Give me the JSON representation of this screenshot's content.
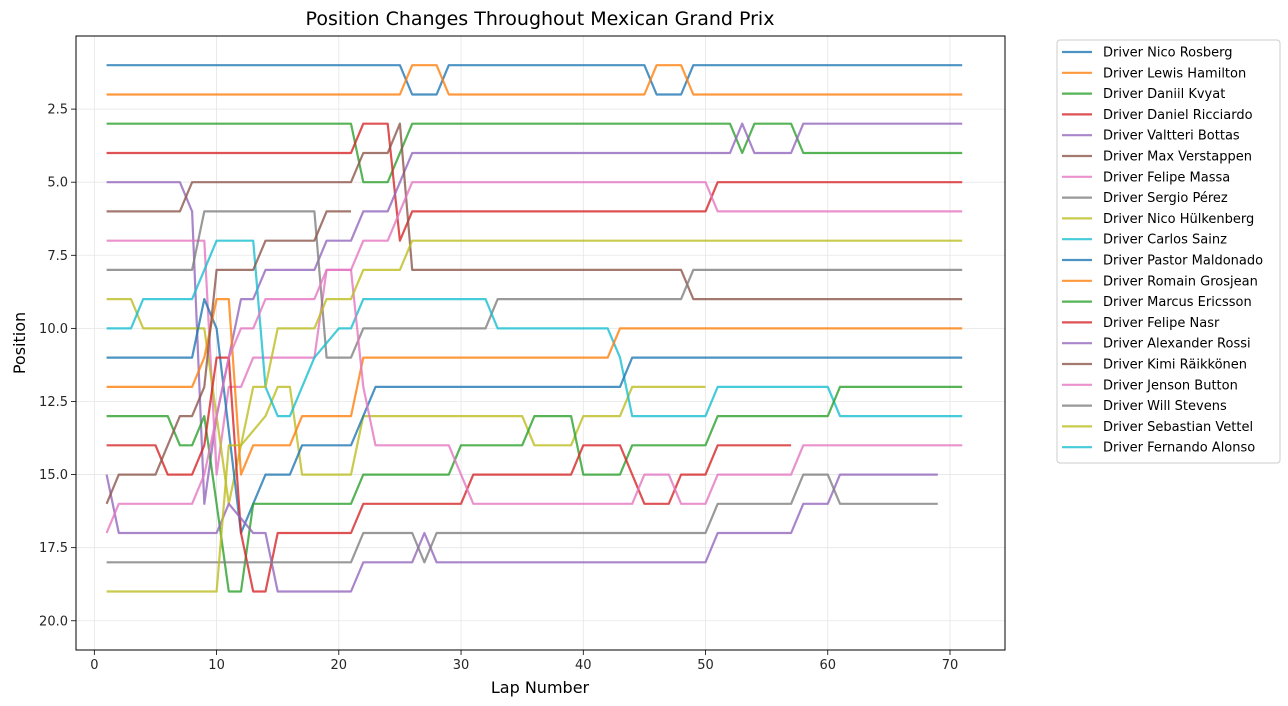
{
  "chart_data": {
    "type": "line",
    "title": "Position Changes Throughout Mexican Grand Prix",
    "xlabel": "Lap Number",
    "ylabel": "Position",
    "xlim": [
      -1.5,
      74.5
    ],
    "ylim": [
      21.0,
      0.0
    ],
    "xticks": [
      0,
      10,
      20,
      30,
      40,
      50,
      60,
      70
    ],
    "yticks": [
      2.5,
      5.0,
      7.5,
      10.0,
      12.5,
      15.0,
      17.5,
      20.0
    ],
    "grid": true,
    "legend_position": "outside-right",
    "series": [
      {
        "name": "Driver Nico Rosberg",
        "color": "#1f77b4",
        "points": [
          [
            1,
            1
          ],
          [
            25,
            1
          ],
          [
            26,
            2
          ],
          [
            28,
            2
          ],
          [
            29,
            1
          ],
          [
            45,
            1
          ],
          [
            46,
            2
          ],
          [
            48,
            2
          ],
          [
            49,
            1
          ],
          [
            71,
            1
          ]
        ]
      },
      {
        "name": "Driver Lewis Hamilton",
        "color": "#ff7f0e",
        "points": [
          [
            1,
            2
          ],
          [
            25,
            2
          ],
          [
            26,
            1
          ],
          [
            28,
            1
          ],
          [
            29,
            2
          ],
          [
            45,
            2
          ],
          [
            46,
            1
          ],
          [
            48,
            1
          ],
          [
            49,
            2
          ],
          [
            71,
            2
          ]
        ]
      },
      {
        "name": "Driver Daniil Kvyat",
        "color": "#2ca02c",
        "points": [
          [
            1,
            3
          ],
          [
            21,
            3
          ],
          [
            22,
            5
          ],
          [
            24,
            5
          ],
          [
            26,
            3
          ],
          [
            52,
            3
          ],
          [
            53,
            4
          ],
          [
            54,
            3
          ],
          [
            57,
            3
          ],
          [
            58,
            4
          ],
          [
            71,
            4
          ]
        ]
      },
      {
        "name": "Driver Daniel Ricciardo",
        "color": "#d62728",
        "points": [
          [
            1,
            4
          ],
          [
            21,
            4
          ],
          [
            22,
            3
          ],
          [
            24,
            3
          ],
          [
            25,
            7
          ],
          [
            26,
            6
          ],
          [
            50,
            6
          ],
          [
            51,
            5
          ],
          [
            71,
            5
          ]
        ]
      },
      {
        "name": "Driver Valtteri Bottas",
        "color": "#9467bd",
        "points": [
          [
            1,
            5
          ],
          [
            7,
            5
          ],
          [
            8,
            6
          ],
          [
            9,
            16
          ],
          [
            10,
            13
          ],
          [
            12,
            9
          ],
          [
            13,
            9
          ],
          [
            14,
            8
          ],
          [
            18,
            8
          ],
          [
            19,
            7
          ],
          [
            21,
            7
          ],
          [
            22,
            6
          ],
          [
            24,
            6
          ],
          [
            26,
            4
          ],
          [
            52,
            4
          ],
          [
            53,
            3
          ],
          [
            54,
            4
          ],
          [
            57,
            4
          ],
          [
            58,
            3
          ],
          [
            71,
            3
          ]
        ]
      },
      {
        "name": "Driver Max Verstappen",
        "color": "#8c564b",
        "points": [
          [
            1,
            6
          ],
          [
            7,
            6
          ],
          [
            8,
            5
          ],
          [
            21,
            5
          ],
          [
            22,
            4
          ],
          [
            24,
            4
          ],
          [
            25,
            3
          ],
          [
            26,
            8
          ],
          [
            48,
            8
          ],
          [
            49,
            9
          ],
          [
            71,
            9
          ]
        ]
      },
      {
        "name": "Driver Felipe Massa",
        "color": "#e377c2",
        "points": [
          [
            1,
            7
          ],
          [
            9,
            7
          ],
          [
            10,
            15
          ],
          [
            11,
            12
          ],
          [
            12,
            12
          ],
          [
            13,
            11
          ],
          [
            18,
            11
          ],
          [
            19,
            8
          ],
          [
            21,
            8
          ],
          [
            22,
            7
          ],
          [
            24,
            7
          ],
          [
            26,
            5
          ],
          [
            50,
            5
          ],
          [
            51,
            6
          ],
          [
            71,
            6
          ]
        ]
      },
      {
        "name": "Driver Sergio Pérez",
        "color": "#7f7f7f",
        "points": [
          [
            1,
            8
          ],
          [
            8,
            8
          ],
          [
            9,
            6
          ],
          [
            18,
            6
          ],
          [
            19,
            11
          ],
          [
            21,
            11
          ],
          [
            22,
            10
          ],
          [
            32,
            10
          ],
          [
            33,
            9
          ],
          [
            48,
            9
          ],
          [
            49,
            8
          ],
          [
            71,
            8
          ]
        ]
      },
      {
        "name": "Driver Nico Hülkenberg",
        "color": "#bcbd22",
        "points": [
          [
            1,
            9
          ],
          [
            3,
            9
          ],
          [
            4,
            10
          ],
          [
            9,
            10
          ],
          [
            10,
            13
          ],
          [
            11,
            16
          ],
          [
            12,
            14
          ],
          [
            14,
            13
          ],
          [
            15,
            12
          ],
          [
            16,
            12
          ],
          [
            17,
            15
          ],
          [
            21,
            15
          ],
          [
            22,
            13
          ],
          [
            35,
            13
          ],
          [
            36,
            14
          ],
          [
            39,
            14
          ],
          [
            40,
            13
          ],
          [
            43,
            13
          ],
          [
            44,
            12
          ],
          [
            50,
            12
          ]
        ]
      },
      {
        "name": "Driver Carlos Sainz",
        "color": "#17becf",
        "points": [
          [
            1,
            10
          ],
          [
            3,
            10
          ],
          [
            4,
            9
          ],
          [
            8,
            9
          ],
          [
            10,
            7
          ],
          [
            13,
            7
          ],
          [
            14,
            12
          ],
          [
            15,
            13
          ],
          [
            16,
            13
          ],
          [
            18,
            11
          ],
          [
            20,
            10
          ],
          [
            21,
            10
          ],
          [
            22,
            9
          ],
          [
            32,
            9
          ],
          [
            33,
            10
          ],
          [
            42,
            10
          ],
          [
            43,
            11
          ],
          [
            44,
            13
          ],
          [
            50,
            13
          ],
          [
            51,
            12
          ],
          [
            60,
            12
          ],
          [
            61,
            13
          ],
          [
            71,
            13
          ]
        ]
      },
      {
        "name": "Driver Pastor Maldonado",
        "color": "#1f77b4",
        "points": [
          [
            1,
            11
          ],
          [
            8,
            11
          ],
          [
            9,
            9
          ],
          [
            10,
            10
          ],
          [
            12,
            17
          ],
          [
            13,
            16
          ],
          [
            14,
            15
          ],
          [
            16,
            15
          ],
          [
            17,
            14
          ],
          [
            21,
            14
          ],
          [
            23,
            12
          ],
          [
            43,
            12
          ],
          [
            44,
            11
          ],
          [
            71,
            11
          ]
        ]
      },
      {
        "name": "Driver Romain Grosjean",
        "color": "#ff7f0e",
        "points": [
          [
            1,
            12
          ],
          [
            8,
            12
          ],
          [
            9,
            11
          ],
          [
            10,
            9
          ],
          [
            11,
            9
          ],
          [
            12,
            15
          ],
          [
            13,
            14
          ],
          [
            16,
            14
          ],
          [
            17,
            13
          ],
          [
            21,
            13
          ],
          [
            22,
            11
          ],
          [
            42,
            11
          ],
          [
            43,
            10
          ],
          [
            71,
            10
          ]
        ]
      },
      {
        "name": "Driver Marcus Ericsson",
        "color": "#2ca02c",
        "points": [
          [
            1,
            13
          ],
          [
            6,
            13
          ],
          [
            7,
            14
          ],
          [
            8,
            14
          ],
          [
            9,
            13
          ],
          [
            10,
            16
          ],
          [
            11,
            19
          ],
          [
            12,
            19
          ],
          [
            13,
            16
          ],
          [
            21,
            16
          ],
          [
            22,
            15
          ],
          [
            29,
            15
          ],
          [
            30,
            14
          ],
          [
            35,
            14
          ],
          [
            36,
            13
          ],
          [
            39,
            13
          ],
          [
            40,
            15
          ],
          [
            43,
            15
          ],
          [
            44,
            14
          ],
          [
            50,
            14
          ],
          [
            51,
            13
          ],
          [
            60,
            13
          ],
          [
            61,
            12
          ],
          [
            71,
            12
          ]
        ]
      },
      {
        "name": "Driver Felipe Nasr",
        "color": "#d62728",
        "points": [
          [
            1,
            14
          ],
          [
            5,
            14
          ],
          [
            6,
            15
          ],
          [
            8,
            15
          ],
          [
            9,
            14
          ],
          [
            10,
            11
          ],
          [
            11,
            11
          ],
          [
            12,
            17
          ],
          [
            13,
            19
          ],
          [
            14,
            19
          ],
          [
            15,
            17
          ],
          [
            21,
            17
          ],
          [
            22,
            16
          ],
          [
            30,
            16
          ],
          [
            31,
            15
          ],
          [
            39,
            15
          ],
          [
            40,
            14
          ],
          [
            43,
            14
          ],
          [
            45,
            16
          ],
          [
            47,
            16
          ],
          [
            48,
            15
          ],
          [
            50,
            15
          ],
          [
            51,
            14
          ],
          [
            57,
            14
          ]
        ]
      },
      {
        "name": "Driver Alexander Rossi",
        "color": "#9467bd",
        "points": [
          [
            1,
            15
          ],
          [
            2,
            17
          ],
          [
            9,
            17
          ],
          [
            10,
            17
          ],
          [
            11,
            16
          ],
          [
            13,
            17
          ],
          [
            14,
            17
          ],
          [
            15,
            19
          ],
          [
            21,
            19
          ],
          [
            22,
            18
          ],
          [
            26,
            18
          ],
          [
            27,
            17
          ],
          [
            28,
            18
          ],
          [
            50,
            18
          ],
          [
            51,
            17
          ],
          [
            57,
            17
          ],
          [
            58,
            16
          ],
          [
            60,
            16
          ],
          [
            61,
            15
          ],
          [
            69,
            15
          ]
        ]
      },
      {
        "name": "Driver Kimi Räikkönen",
        "color": "#8c564b",
        "points": [
          [
            1,
            16
          ],
          [
            2,
            15
          ],
          [
            5,
            15
          ],
          [
            7,
            13
          ],
          [
            8,
            13
          ],
          [
            9,
            12
          ],
          [
            10,
            8
          ],
          [
            13,
            8
          ],
          [
            14,
            7
          ],
          [
            18,
            7
          ],
          [
            19,
            6
          ],
          [
            21,
            6
          ]
        ]
      },
      {
        "name": "Driver Jenson Button",
        "color": "#e377c2",
        "points": [
          [
            1,
            17
          ],
          [
            2,
            16
          ],
          [
            8,
            16
          ],
          [
            9,
            15
          ],
          [
            10,
            13
          ],
          [
            11,
            11
          ],
          [
            12,
            10
          ],
          [
            13,
            10
          ],
          [
            14,
            9
          ],
          [
            18,
            9
          ],
          [
            19,
            8
          ],
          [
            21,
            8
          ],
          [
            22,
            12
          ],
          [
            23,
            14
          ],
          [
            29,
            14
          ],
          [
            31,
            16
          ],
          [
            44,
            16
          ],
          [
            45,
            15
          ],
          [
            47,
            15
          ],
          [
            48,
            16
          ],
          [
            50,
            16
          ],
          [
            51,
            15
          ],
          [
            57,
            15
          ],
          [
            58,
            14
          ],
          [
            71,
            14
          ]
        ]
      },
      {
        "name": "Driver Will Stevens",
        "color": "#7f7f7f",
        "points": [
          [
            1,
            18
          ],
          [
            21,
            18
          ],
          [
            22,
            17
          ],
          [
            26,
            17
          ],
          [
            27,
            18
          ],
          [
            28,
            17
          ],
          [
            50,
            17
          ],
          [
            51,
            16
          ],
          [
            57,
            16
          ],
          [
            58,
            15
          ],
          [
            60,
            15
          ],
          [
            61,
            16
          ],
          [
            69,
            16
          ]
        ]
      },
      {
        "name": "Driver Sebastian Vettel",
        "color": "#bcbd22",
        "points": [
          [
            1,
            19
          ],
          [
            10,
            19
          ],
          [
            11,
            14
          ],
          [
            12,
            14
          ],
          [
            13,
            12
          ],
          [
            14,
            12
          ],
          [
            15,
            10
          ],
          [
            18,
            10
          ],
          [
            19,
            9
          ],
          [
            21,
            9
          ],
          [
            22,
            8
          ],
          [
            25,
            8
          ],
          [
            26,
            7
          ],
          [
            71,
            7
          ]
        ]
      },
      {
        "name": "Driver Fernando Alonso",
        "color": "#17becf",
        "points": []
      }
    ]
  }
}
